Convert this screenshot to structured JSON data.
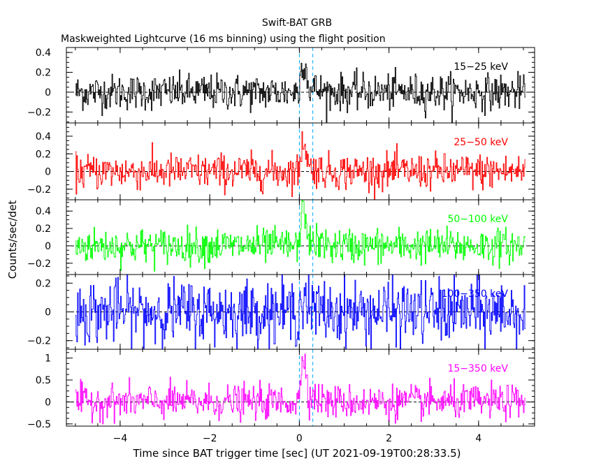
{
  "chart_data": {
    "type": "line",
    "title": "Swift-BAT GRB",
    "subtitle": "Maskweighted Lightcurve (16 ms binning) using the flight position",
    "xlabel": "Time since BAT trigger time [sec] (UT 2021-09-19T00:28:33.5)",
    "ylabel": "Counts/sec/det",
    "xlim": [
      -5.2,
      5.25
    ],
    "x_ticks": [
      -4,
      -2,
      0,
      2,
      4
    ],
    "x_tick_labels": [
      "−4",
      "−2",
      "0",
      "2",
      "4"
    ],
    "x_range": [
      -5.0,
      5.05
    ],
    "bin_width": 0.016,
    "burst": {
      "start": 0.0,
      "end": 0.3
    },
    "panels": [
      {
        "band": "15−25 keV",
        "color": "#000000",
        "ylim": [
          -0.31,
          0.45
        ],
        "y_ticks": [
          -0.2,
          0,
          0.2,
          0.4
        ],
        "y_tick_labels": [
          "−0.2",
          "0",
          "0.2",
          "0.4"
        ],
        "noise_sigma": 0.09,
        "peak": 0.32
      },
      {
        "band": "25−50 keV",
        "color": "#ff0000",
        "ylim": [
          -0.32,
          0.55
        ],
        "y_ticks": [
          -0.2,
          0,
          0.2,
          0.4
        ],
        "y_tick_labels": [
          "−0.2",
          "0",
          "0.2",
          "0.4"
        ],
        "noise_sigma": 0.1,
        "peak": 0.35
      },
      {
        "band": "50−100 keV",
        "color": "#00ff00",
        "ylim": [
          -0.33,
          0.53
        ],
        "y_ticks": [
          -0.2,
          0,
          0.2,
          0.4
        ],
        "y_tick_labels": [
          "−0.2",
          "0",
          "0.2",
          "0.4"
        ],
        "noise_sigma": 0.1,
        "peak": 0.42
      },
      {
        "band": "100−350 keV",
        "color": "#0000ff",
        "ylim": [
          -0.26,
          0.26
        ],
        "y_ticks": [
          -0.2,
          0,
          0.2
        ],
        "y_tick_labels": [
          "−0.2",
          "0",
          "0.2"
        ],
        "noise_sigma": 0.11,
        "peak": 0.12
      },
      {
        "band": "15−350 keV",
        "color": "#ff00ff",
        "ylim": [
          -0.55,
          1.2
        ],
        "y_ticks": [
          -0.5,
          0,
          0.5,
          1
        ],
        "y_tick_labels": [
          "−0.5",
          "0",
          "0.5",
          "1"
        ],
        "noise_sigma": 0.19,
        "peak": 1.05
      }
    ]
  }
}
